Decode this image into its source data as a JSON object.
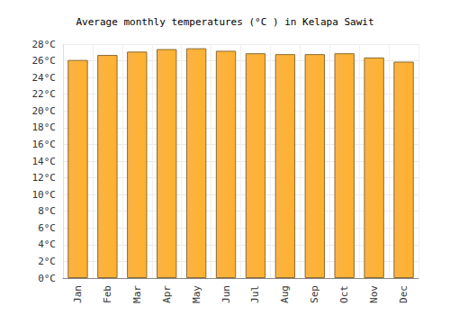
{
  "chart_data": {
    "type": "bar",
    "title": "Average monthly temperatures (°C ) in Kelapa Sawit",
    "categories": [
      "Jan",
      "Feb",
      "Mar",
      "Apr",
      "May",
      "Jun",
      "Jul",
      "Aug",
      "Sep",
      "Oct",
      "Nov",
      "Dec"
    ],
    "values": [
      26.1,
      26.7,
      27.1,
      27.4,
      27.5,
      27.2,
      26.9,
      26.8,
      26.8,
      26.9,
      26.4,
      25.9
    ],
    "color": "#fba82c",
    "ylim": [
      0,
      28
    ],
    "yticks": [
      {
        "value": 0,
        "label": "0°C"
      },
      {
        "value": 2,
        "label": "2°C"
      },
      {
        "value": 4,
        "label": "4°C"
      },
      {
        "value": 6,
        "label": "6°C"
      },
      {
        "value": 8,
        "label": "8°C"
      },
      {
        "value": 10,
        "label": "10°C"
      },
      {
        "value": 12,
        "label": "12°C"
      },
      {
        "value": 14,
        "label": "14°C"
      },
      {
        "value": 16,
        "label": "16°C"
      },
      {
        "value": 18,
        "label": "18°C"
      },
      {
        "value": 20,
        "label": "20°C"
      },
      {
        "value": 22,
        "label": "22°C"
      },
      {
        "value": 24,
        "label": "24°C"
      },
      {
        "value": 26,
        "label": "26°C"
      },
      {
        "value": 28,
        "label": "28°C"
      }
    ],
    "grid": true
  }
}
